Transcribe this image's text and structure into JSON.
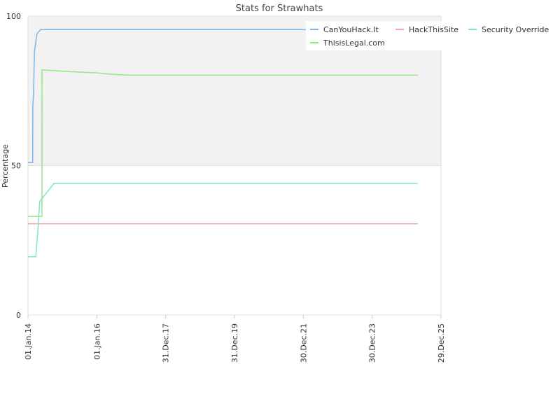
{
  "chart_data": {
    "type": "line",
    "title": "Stats for Strawhats",
    "y_label": "Percentage",
    "xlim": [
      "2014-01-01",
      "2025-12-29"
    ],
    "xticks": [
      {
        "value": "2014-01-01",
        "label": "01.Jan.14"
      },
      {
        "value": "2016-01-01",
        "label": "01.Jan.16"
      },
      {
        "value": "2017-12-31",
        "label": "31.Dec.17"
      },
      {
        "value": "2019-12-31",
        "label": "31.Dec.19"
      },
      {
        "value": "2021-12-30",
        "label": "30.Dec.21"
      },
      {
        "value": "2023-12-30",
        "label": "30.Dec.23"
      },
      {
        "value": "2025-12-29",
        "label": "29.Dec.25"
      }
    ],
    "ylim": [
      0,
      100
    ],
    "yticks": [
      0,
      50,
      100
    ],
    "grid": true,
    "legend": "top-right",
    "series": [
      {
        "name": "CanYouHack.It",
        "color": "#7cb5ec",
        "x": [
          "2014-01-01",
          "2014-02-20",
          "2014-02-21",
          "2014-03-01",
          "2014-03-10",
          "2014-04-05",
          "2014-05-15",
          "2025-04-27"
        ],
        "values": [
          51,
          51,
          70,
          74,
          88,
          94,
          95.5,
          95.5
        ]
      },
      {
        "name": "HackThisSite",
        "color": "#f7a3b5",
        "x": [
          "2014-01-01",
          "2025-04-27"
        ],
        "values": [
          30.5,
          30.5
        ]
      },
      {
        "name": "Security Override",
        "color": "#7fe3d0",
        "x": [
          "2014-01-01",
          "2014-03-25",
          "2014-04-20",
          "2014-05-05",
          "2014-10-03",
          "2025-04-27"
        ],
        "values": [
          19.5,
          19.5,
          30,
          38,
          44,
          44
        ]
      },
      {
        "name": "ThisisLegal.com",
        "color": "#90ed7d",
        "x": [
          "2014-01-01",
          "2014-05-29",
          "2014-05-30",
          "2015-02-05",
          "2016-01-01",
          "2016-07-01",
          "2016-12-07",
          "2025-04-27"
        ],
        "values": [
          33,
          33,
          82,
          81.5,
          81,
          80.5,
          80.2,
          80.2
        ]
      }
    ]
  }
}
